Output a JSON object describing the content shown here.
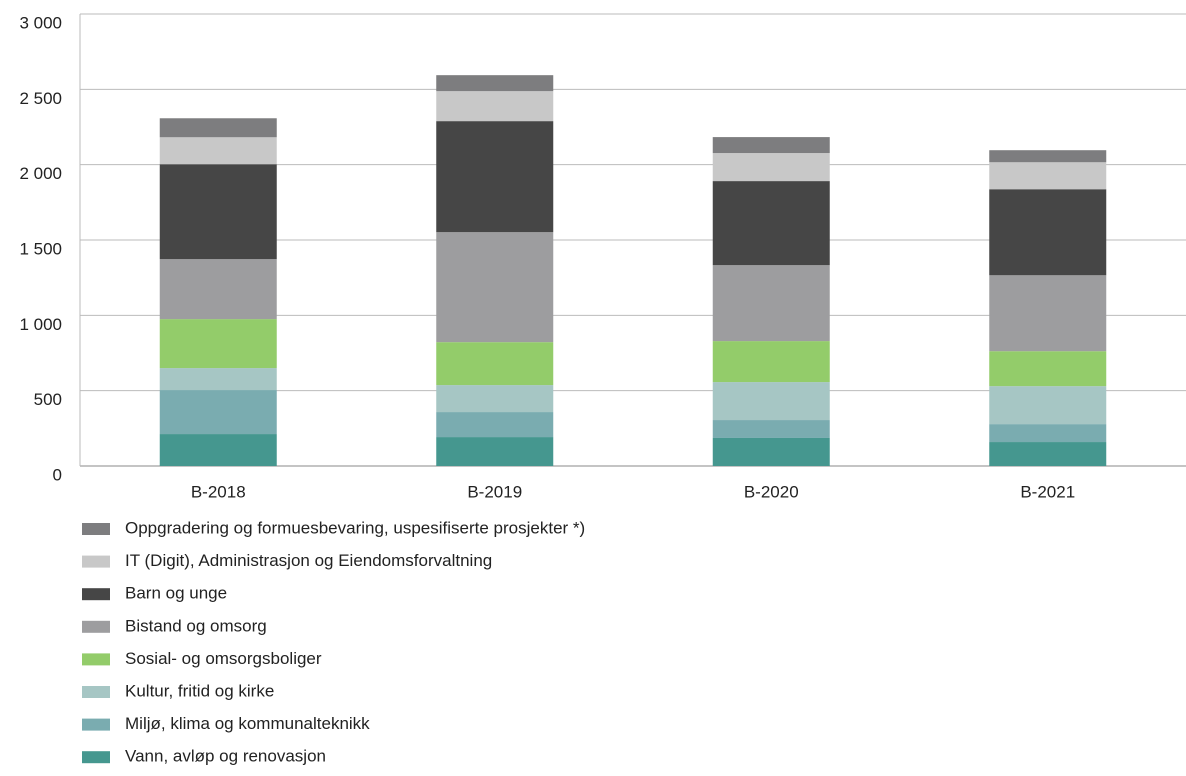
{
  "chart_data": {
    "type": "stacked_bar",
    "categories": [
      "B-2018",
      "B-2019",
      "B-2020",
      "B-2021"
    ],
    "series": [
      {
        "name": "Vann, avløp og renovasjon",
        "color": "#45978f",
        "values": [
          212,
          192,
          186,
          159
        ]
      },
      {
        "name": "Miljø, klima og kommunalteknikk",
        "color": "#7aacb0",
        "values": [
          292,
          166,
          119,
          119
        ]
      },
      {
        "name": "Kultur, fritid og kirke",
        "color": "#a6c6c4",
        "values": [
          146,
          179,
          252,
          252
        ]
      },
      {
        "name": "Sosial- og omsorgsboliger",
        "color": "#93cc6a",
        "values": [
          325,
          285,
          272,
          232
        ]
      },
      {
        "name": "Bistand og omsorg",
        "color": "#9d9d9f",
        "values": [
          398,
          730,
          504,
          504
        ]
      },
      {
        "name": "Barn og unge",
        "color": "#464646",
        "values": [
          630,
          737,
          558,
          571
        ]
      },
      {
        "name": "IT (Digit), Administrasjon og Eiendomsforvaltning",
        "color": "#c8c8c8",
        "values": [
          179,
          199,
          186,
          179
        ]
      },
      {
        "name": "Oppgradering og formuesbevaring, uspesifiserte prosjekter *)",
        "color": "#7d7d7f",
        "values": [
          126,
          106,
          106,
          80
        ]
      }
    ],
    "ylim": [
      0,
      3000
    ],
    "yticks": [
      0,
      500,
      {
        "value": 1000,
        "label": "1 000"
      },
      {
        "value": 1500,
        "label": "1 500"
      },
      {
        "value": 2000,
        "label": "2 000"
      },
      {
        "value": 2500,
        "label": "2 500"
      },
      {
        "value": 3000,
        "label": "3 000"
      }
    ],
    "grid": true,
    "legend": "bottom"
  }
}
